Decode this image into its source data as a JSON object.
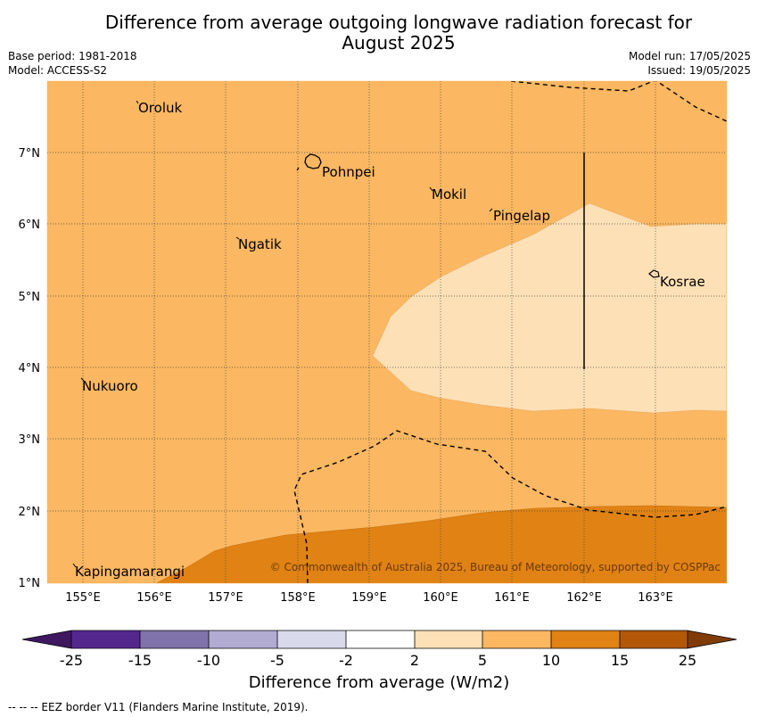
{
  "title": "Difference from average outgoing longwave radiation forecast for August 2025",
  "title_line1": "Difference from average outgoing longwave radiation forecast for",
  "title_line2": "August 2025",
  "base_period": "Base period: 1981-2018",
  "model": "Model: ACCESS-S2",
  "model_run": "Model run: 17/05/2025",
  "issued": "Issued: 19/05/2025",
  "copyright": "© Commonwealth of Australia 2025, Bureau of Meteorology, supported by COSPPac",
  "places": [
    "Oroluk",
    "Pohnpei",
    "Mokil",
    "Pingelap",
    "Ngatik",
    "Kosrae",
    "Nukuoro",
    "Kapingamarangi"
  ],
  "lat_ticks": [
    "7°N",
    "6°N",
    "5°N",
    "4°N",
    "3°N",
    "2°N",
    "1°N"
  ],
  "lon_ticks": [
    "155°E",
    "156°E",
    "157°E",
    "158°E",
    "159°E",
    "160°E",
    "161°E",
    "162°E",
    "163°E"
  ],
  "colorbar": {
    "ticks": [
      "-25",
      "-15",
      "-10",
      "-5",
      "-2",
      "2",
      "5",
      "10",
      "15",
      "25"
    ],
    "colors": [
      "#3f1760",
      "#54278f",
      "#8073ac",
      "#b2abd2",
      "#d8daeb",
      "#ffffff",
      "#fee0b6",
      "#fbb761",
      "#e08214",
      "#b35806",
      "#7f3b08"
    ],
    "label": "Difference from average (W/m2)"
  },
  "footer": "--  --  -- EEZ border V11 (Flanders Marine Institute, 2019)."
}
